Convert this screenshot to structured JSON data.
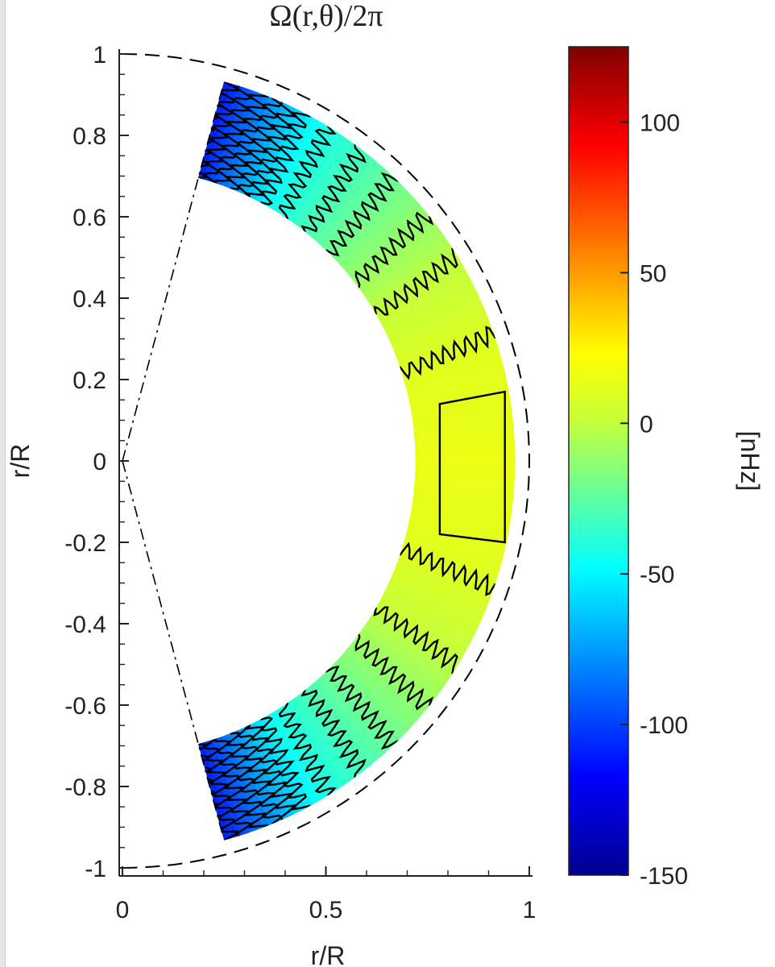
{
  "chart_data": {
    "type": "heatmap",
    "title": "Ω(r,θ)/2π",
    "xlabel": "r/R",
    "ylabel": "r/R",
    "xlim": [
      0,
      1
    ],
    "ylim": [
      -1,
      1
    ],
    "xticks": [
      0,
      0.5,
      1
    ],
    "xtick_labels": [
      "0",
      "0.5",
      "1"
    ],
    "yticks": [
      1,
      0.8,
      0.6,
      0.4,
      0.2,
      0,
      -0.2,
      -0.4,
      -0.6,
      -0.8,
      -1
    ],
    "ytick_labels": [
      "1",
      "0.8",
      "0.6",
      "0.4",
      "0.2",
      "0",
      "-0.2",
      "-0.4",
      "-0.6",
      "-0.8",
      "-1"
    ],
    "domain": {
      "inner_radius": 0.72,
      "outer_radius": 0.965,
      "max_latitude_deg": 75,
      "reference_circle_radius": 1.0
    },
    "field_samples": {
      "latitude_deg": [
        0,
        15,
        30,
        45,
        60,
        75
      ],
      "value_nHz": [
        15,
        12,
        0,
        -20,
        -45,
        -110
      ]
    },
    "colorbar": {
      "label": "[nHz]",
      "range": [
        -150,
        125
      ],
      "ticks": [
        100,
        50,
        0,
        -50,
        -100,
        -150
      ],
      "tick_labels": [
        "100",
        "50",
        "0",
        "-50",
        "-100",
        "-150"
      ],
      "colormap": "jet"
    },
    "grid": false
  }
}
